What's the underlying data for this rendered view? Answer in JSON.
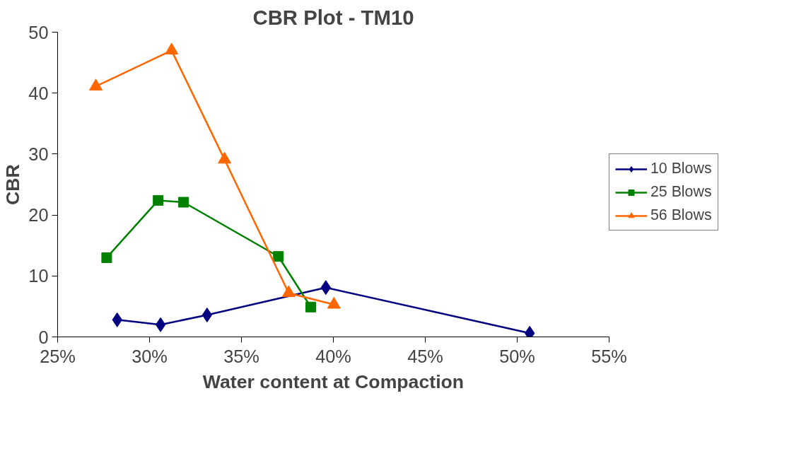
{
  "chart_data": {
    "type": "line",
    "title": "CBR Plot - TM10",
    "xlabel": "Water content at Compaction",
    "ylabel": "CBR",
    "xlim": [
      25,
      55
    ],
    "ylim": [
      0,
      50
    ],
    "xticks": [
      {
        "value": 25,
        "label": "25%"
      },
      {
        "value": 30,
        "label": "30%"
      },
      {
        "value": 35,
        "label": "35%"
      },
      {
        "value": 40,
        "label": "40%"
      },
      {
        "value": 45,
        "label": "45%"
      },
      {
        "value": 50,
        "label": "50%"
      },
      {
        "value": 55,
        "label": "55%"
      }
    ],
    "yticks": [
      0,
      10,
      20,
      30,
      40,
      50
    ],
    "grid": false,
    "legend": "right",
    "line_style": "solid",
    "series": [
      {
        "name": "10 Blows",
        "color": "#000080",
        "marker": "diamond",
        "x": [
          28.24,
          30.6,
          33.13,
          39.59,
          50.68
        ],
        "values": [
          2.8,
          2.0,
          3.6,
          8.1,
          0.6
        ]
      },
      {
        "name": "25 Blows",
        "color": "#008000",
        "marker": "square",
        "x": [
          27.67,
          30.47,
          31.85,
          37.01,
          38.77
        ],
        "values": [
          13.0,
          22.4,
          22.1,
          13.2,
          4.9
        ]
      },
      {
        "name": "56 Blows",
        "color": "#ff6600",
        "marker": "triangle",
        "x": [
          27.08,
          31.2,
          34.08,
          37.57,
          40.03
        ],
        "values": [
          41.1,
          47.0,
          29.1,
          7.2,
          5.3
        ]
      }
    ]
  }
}
